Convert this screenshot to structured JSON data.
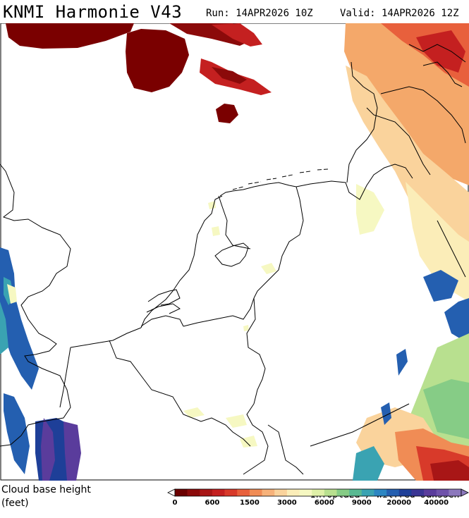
{
  "header": {
    "title": "KNMI Harmonie V43",
    "run": "Run: 14APR2026 10Z",
    "valid": "Valid: 14APR2026 12Z"
  },
  "map": {
    "credit": "Infoplaza / Wilfred Janssen"
  },
  "legend": {
    "title_line1": "Cloud base height",
    "title_line2": "(feet)",
    "tick_labels": [
      "0",
      "600",
      "1500",
      "3000",
      "6000",
      "9000",
      "20000",
      "40000"
    ],
    "colors": [
      "#6b0000",
      "#8b0a0a",
      "#a81616",
      "#c42020",
      "#d83a2a",
      "#e8603c",
      "#f08c55",
      "#f7b27a",
      "#fad39c",
      "#fbedb8",
      "#f6f8c2",
      "#dff0a8",
      "#b8e08f",
      "#86cc86",
      "#58b992",
      "#3aa3b2",
      "#2c86c2",
      "#245fb0",
      "#1e3f98",
      "#3a3594",
      "#5a3c9c",
      "#6f52aa",
      "#8c78bc"
    ]
  }
}
